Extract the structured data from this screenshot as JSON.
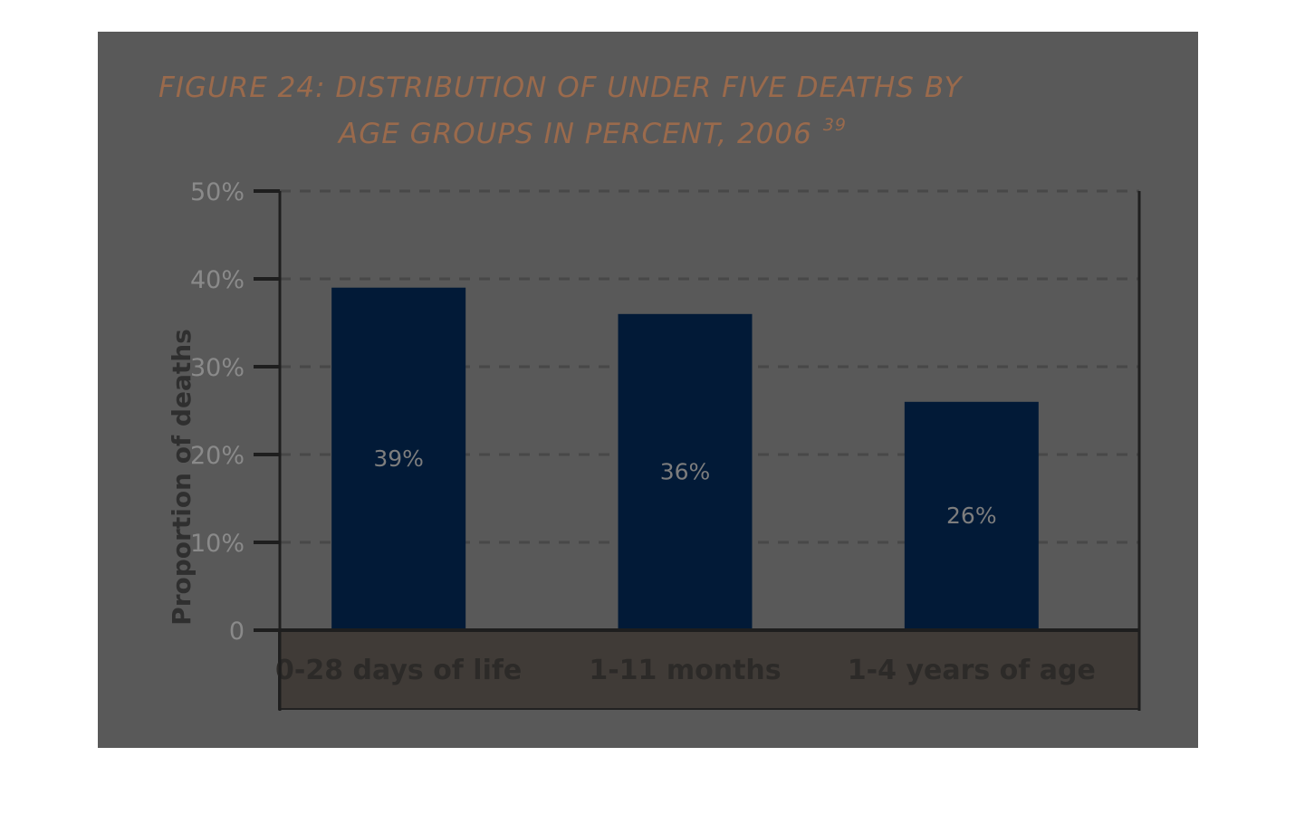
{
  "chart_data": {
    "type": "bar",
    "title": "FIGURE 24: DISTRIBUTION OF UNDER FIVE DEATHS BY",
    "title_line2": "AGE GROUPS IN PERCENT, 2006",
    "title_superscript": "39",
    "ylabel": "Proportion of deaths",
    "xlabel": "",
    "categories": [
      "0-28 days of life",
      "1-11 months",
      "1-4 years of age"
    ],
    "values": [
      39,
      36,
      26
    ],
    "data_labels": [
      "39%",
      "36%",
      "26%"
    ],
    "yticks": [
      0,
      10,
      20,
      30,
      40,
      50
    ],
    "ytick_labels": [
      "0",
      "10%",
      "20%",
      "30%",
      "40%",
      "50%"
    ],
    "ylim": [
      0,
      50
    ],
    "grid": "dashed horizontal",
    "colors": {
      "bar": "#021a37",
      "panel": "#595959",
      "category_strip": "#403b37",
      "title": "#9a6a4c"
    }
  }
}
